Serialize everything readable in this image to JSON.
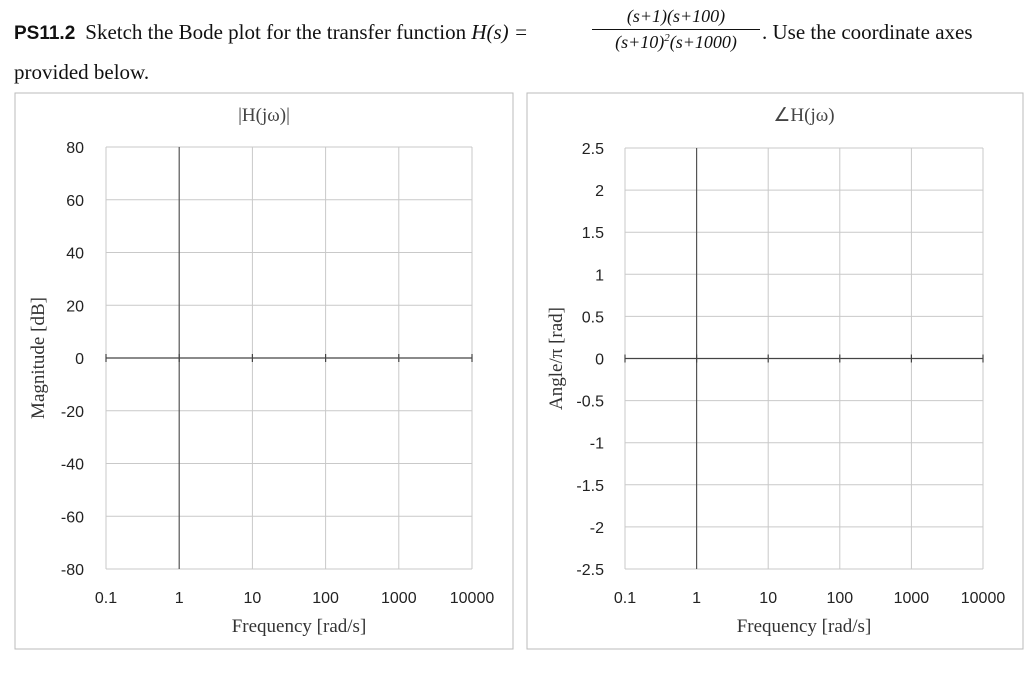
{
  "problem": {
    "id": "PS11.2",
    "text_before": "Sketch the Bode plot for the transfer function",
    "function_lhs": "H(s) =",
    "numerator": "(s+1)(s+100)",
    "denominator_a": "(s+10)",
    "denominator_exp": "2",
    "denominator_b": "(s+1000)",
    "text_after": ". Use the coordinate axes",
    "text_line2": "provided below."
  },
  "chart_data": [
    {
      "type": "line",
      "title": "|H(jω)|",
      "xlabel": "Frequency [rad/s]",
      "ylabel": "Magnitude [dB]",
      "x_scale": "log",
      "x_ticks": [
        0.1,
        1,
        10,
        100,
        1000,
        10000
      ],
      "x_tick_labels": [
        "0.1",
        "1",
        "10",
        "100",
        "1000",
        "10000"
      ],
      "y_ticks": [
        80,
        60,
        40,
        20,
        0,
        -20,
        -40,
        -60,
        -80
      ],
      "y_tick_labels": [
        "80",
        "60",
        "40",
        "20",
        "0",
        "-20",
        "-40",
        "-60",
        "-80"
      ],
      "ylim": [
        -80,
        80
      ],
      "xlim": [
        0.1,
        10000
      ],
      "grid": true,
      "series": []
    },
    {
      "type": "line",
      "title": "∠H(jω)",
      "xlabel": "Frequency [rad/s]",
      "ylabel": "Angle/π [rad]",
      "x_scale": "log",
      "x_ticks": [
        0.1,
        1,
        10,
        100,
        1000,
        10000
      ],
      "x_tick_labels": [
        "0.1",
        "1",
        "10",
        "100",
        "1000",
        "10000"
      ],
      "y_ticks": [
        2.5,
        2,
        1.5,
        1,
        0.5,
        0,
        -0.5,
        -1,
        -1.5,
        -2,
        -2.5
      ],
      "y_tick_labels": [
        "2.5",
        "2",
        "1.5",
        "1",
        "0.5",
        "0",
        "-0.5",
        "-1",
        "-1.5",
        "-2",
        "-2.5"
      ],
      "ylim": [
        -2.5,
        2.5
      ],
      "xlim": [
        0.1,
        10000
      ],
      "grid": true,
      "series": []
    }
  ]
}
